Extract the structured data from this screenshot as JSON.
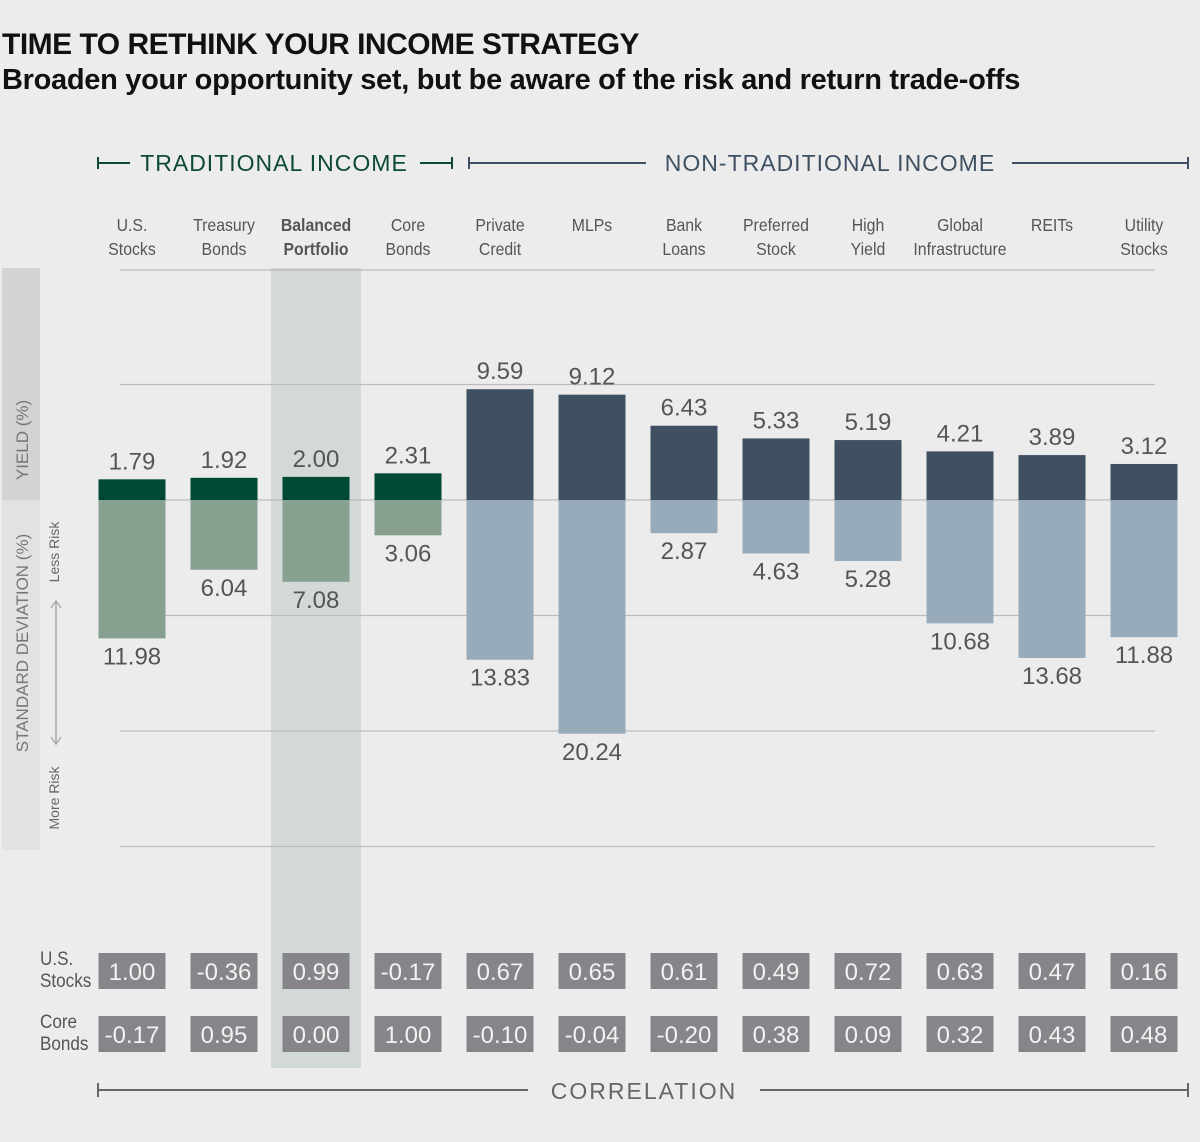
{
  "title": "TIME TO RETHINK YOUR INCOME STRATEGY",
  "subtitle": "Broaden your opportunity set, but be aware of the risk and return trade-offs",
  "chart_data": {
    "type": "bar",
    "group_labels": {
      "traditional": "TRADITIONAL INCOME",
      "non_traditional": "NON-TRADITIONAL INCOME"
    },
    "categories": [
      [
        "U.S.",
        "Stocks"
      ],
      [
        "Treasury",
        "Bonds"
      ],
      [
        "Balanced",
        "Portfolio"
      ],
      [
        "Core",
        "Bonds"
      ],
      [
        "Private",
        "Credit"
      ],
      [
        "MLPs",
        ""
      ],
      [
        "Bank",
        "Loans"
      ],
      [
        "Preferred",
        "Stock"
      ],
      [
        "High",
        "Yield"
      ],
      [
        "Global",
        "Infrastructure"
      ],
      [
        "REITs",
        ""
      ],
      [
        "Utility",
        "Stocks"
      ]
    ],
    "groups": [
      "traditional",
      "traditional",
      "traditional",
      "traditional",
      "non_traditional",
      "non_traditional",
      "non_traditional",
      "non_traditional",
      "non_traditional",
      "non_traditional",
      "non_traditional",
      "non_traditional"
    ],
    "highlighted_category": 2,
    "yield_label": "YIELD (%)",
    "stddev_label": "STANDARD DEVIATION (%)",
    "less_risk_label": "Less Risk",
    "more_risk_label": "More Risk",
    "series": [
      {
        "name": "YIELD (%)",
        "values": [
          1.79,
          1.92,
          2.0,
          2.31,
          9.59,
          9.12,
          6.43,
          5.33,
          5.19,
          4.21,
          3.89,
          3.12
        ]
      },
      {
        "name": "STANDARD DEVIATION (%)",
        "values": [
          11.98,
          6.04,
          7.08,
          3.06,
          13.83,
          20.24,
          2.87,
          4.63,
          5.28,
          10.68,
          13.68,
          11.88
        ]
      }
    ],
    "value_labels_yield": [
      "1.79",
      "1.92",
      "2.00",
      "2.31",
      "9.59",
      "9.12",
      "6.43",
      "5.33",
      "5.19",
      "4.21",
      "3.89",
      "3.12"
    ],
    "value_labels_stddev": [
      "11.98",
      "6.04",
      "7.08",
      "3.06",
      "13.83",
      "20.24",
      "2.87",
      "4.63",
      "5.28",
      "10.68",
      "13.68",
      "11.88"
    ],
    "yield_ylim": [
      0,
      20
    ],
    "stddev_ylim": [
      0,
      30
    ],
    "grid": true,
    "correlation": {
      "label": "CORRELATION",
      "rows": [
        {
          "label": [
            "U.S.",
            "Stocks"
          ],
          "values": [
            "1.00",
            "-0.36",
            "0.99",
            "-0.17",
            "0.67",
            "0.65",
            "0.61",
            "0.49",
            "0.72",
            "0.63",
            "0.47",
            "0.16"
          ]
        },
        {
          "label": [
            "Core",
            "Bonds"
          ],
          "values": [
            "-0.17",
            "0.95",
            "0.00",
            "1.00",
            "-0.10",
            "-0.04",
            "-0.20",
            "0.38",
            "0.09",
            "0.32",
            "0.43",
            "0.48"
          ]
        }
      ]
    },
    "colors": {
      "traditional_yield": "#004a35",
      "traditional_stddev": "#87a090",
      "non_traditional_yield": "#3e5062",
      "non_traditional_stddev": "#98abbb",
      "traditional_header": "#0d4a34",
      "non_traditional_header": "#3e5062",
      "highlight_band": "#d2d9d6",
      "correlation_box": "#86868a"
    }
  }
}
